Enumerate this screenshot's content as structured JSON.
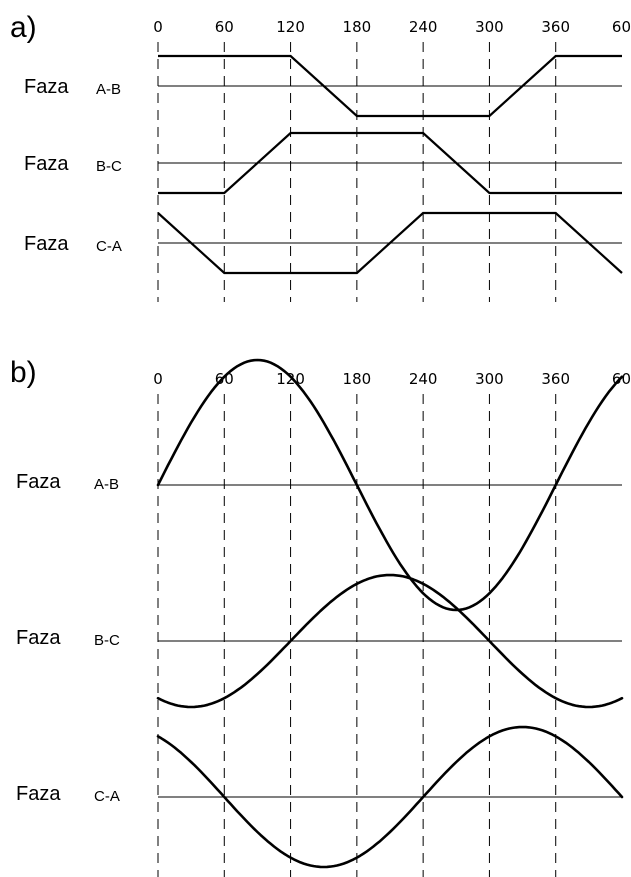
{
  "chart_data": [
    {
      "type": "line",
      "panel_label": "a)",
      "x_ticks": [
        "0",
        "60",
        "120",
        "180",
        "240",
        "300",
        "360",
        "60"
      ],
      "xlim": [
        0,
        420
      ],
      "grid": "vertical dashed lines at every 60 degrees",
      "series": [
        {
          "label_prefix": "Faza",
          "label_phase": "A-B",
          "x": [
            0,
            120,
            180,
            300,
            360,
            420
          ],
          "y": [
            1,
            1,
            -1,
            -1,
            1,
            1
          ]
        },
        {
          "label_prefix": "Faza",
          "label_phase": "B-C",
          "x": [
            0,
            60,
            120,
            240,
            300,
            420
          ],
          "y": [
            -1,
            -1,
            1,
            1,
            -1,
            -1
          ]
        },
        {
          "label_prefix": "Faza",
          "label_phase": "C-A",
          "x": [
            0,
            60,
            180,
            240,
            360,
            420
          ],
          "y": [
            1,
            -1,
            -1,
            1,
            1,
            -1
          ]
        }
      ]
    },
    {
      "type": "line",
      "panel_label": "b)",
      "x_ticks": [
        "0",
        "60",
        "120",
        "180",
        "240",
        "300",
        "360",
        "60"
      ],
      "xlim": [
        0,
        420
      ],
      "grid": "vertical dashed lines at every 60 degrees",
      "series": [
        {
          "label_prefix": "Faza",
          "label_phase": "A-B",
          "shape": "sine",
          "phase_shift_deg": 0
        },
        {
          "label_prefix": "Faza",
          "label_phase": "B-C",
          "shape": "sine",
          "phase_shift_deg": 120
        },
        {
          "label_prefix": "Faza",
          "label_phase": "C-A",
          "shape": "sine",
          "phase_shift_deg": 240
        }
      ]
    }
  ]
}
